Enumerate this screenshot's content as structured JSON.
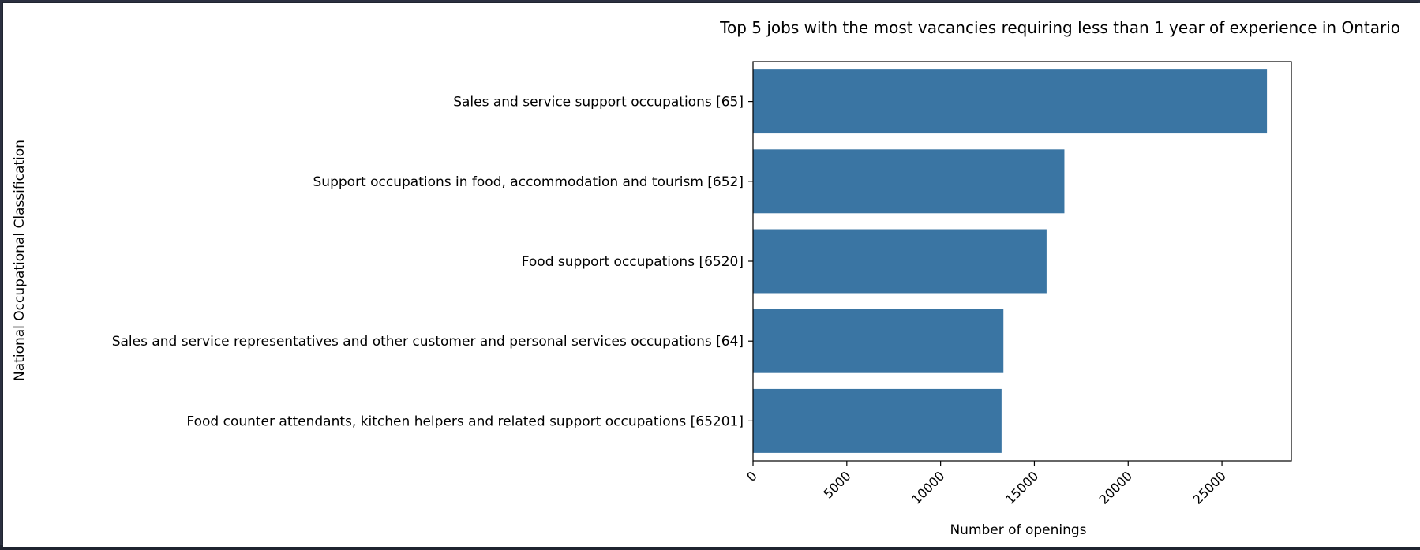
{
  "chart_data": {
    "type": "bar",
    "orientation": "horizontal",
    "title": "Top 5 jobs with the most vacancies requiring less than 1 year of experience in Ontario",
    "xlabel": "Number of openings",
    "ylabel": "National Occupational Classification",
    "categories": [
      "Sales and service support occupations [65]",
      "Support occupations in food, accommodation and tourism [652]",
      "Food support occupations [6520]",
      "Sales and service representatives and other customer and personal services occupations [64]",
      "Food counter attendants, kitchen helpers and related support occupations [65201]"
    ],
    "values": [
      27400,
      16600,
      15650,
      13350,
      13250
    ],
    "xlim": [
      0,
      28700
    ],
    "xticks": [
      0,
      5000,
      10000,
      15000,
      20000,
      25000
    ],
    "xtick_labels": [
      "0",
      "5000",
      "10000",
      "15000",
      "20000",
      "25000"
    ],
    "grid": false,
    "bar_color": "#3a75a3"
  }
}
